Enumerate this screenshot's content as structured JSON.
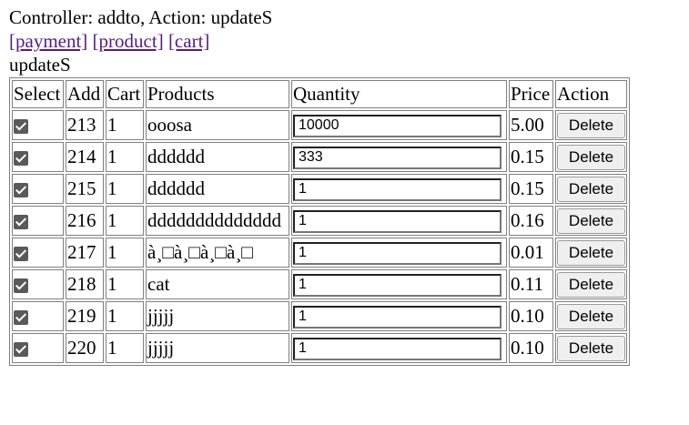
{
  "header": {
    "controller_line": "Controller: addto, Action: updateS",
    "links": [
      "[payment]",
      "[product]",
      "[cart]"
    ],
    "action_label": "updateS"
  },
  "table": {
    "columns": [
      "Select",
      "Add",
      "Cart",
      "Products",
      "Quantity",
      "Price",
      "Action"
    ],
    "rows": [
      {
        "checked": true,
        "add": "213",
        "cart": "1",
        "product": "ooosa",
        "quantity": "10000",
        "price": "5.00",
        "action": "Delete"
      },
      {
        "checked": true,
        "add": "214",
        "cart": "1",
        "product": "dddddd",
        "quantity": "333",
        "price": "0.15",
        "action": "Delete"
      },
      {
        "checked": true,
        "add": "215",
        "cart": "1",
        "product": "dddddd",
        "quantity": "1",
        "price": "0.15",
        "action": "Delete"
      },
      {
        "checked": true,
        "add": "216",
        "cart": "1",
        "product": "dddddddddddddd",
        "quantity": "1",
        "price": "0.16",
        "action": "Delete"
      },
      {
        "checked": true,
        "add": "217",
        "cart": "1",
        "product": "à¸□à¸□à¸□à¸□",
        "quantity": "1",
        "price": "0.01",
        "action": "Delete"
      },
      {
        "checked": true,
        "add": "218",
        "cart": "1",
        "product": "cat",
        "quantity": "1",
        "price": "0.11",
        "action": "Delete"
      },
      {
        "checked": true,
        "add": "219",
        "cart": "1",
        "product": "jjjjj",
        "quantity": "1",
        "price": "0.10",
        "action": "Delete"
      },
      {
        "checked": true,
        "add": "220",
        "cart": "1",
        "product": "jjjjj",
        "quantity": "1",
        "price": "0.10",
        "action": "Delete"
      }
    ]
  }
}
